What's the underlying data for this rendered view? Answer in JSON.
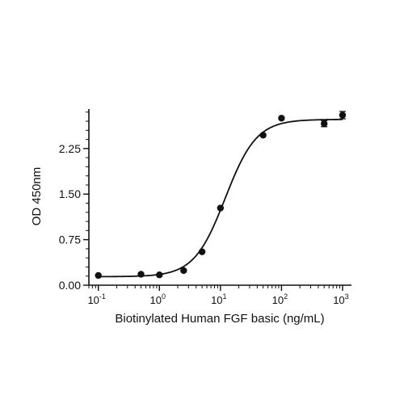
{
  "chart_data": {
    "type": "scatter",
    "title": "",
    "xlabel": "Biotinylated Human FGF basic (ng/mL)",
    "ylabel": "OD 450nm",
    "x_scale": "log10",
    "xlim": [
      0.07,
      1400
    ],
    "ylim": [
      0,
      2.9
    ],
    "y_ticks": [
      {
        "value": 0.0,
        "label": "0.00"
      },
      {
        "value": 0.75,
        "label": "0.75"
      },
      {
        "value": 1.5,
        "label": "1.50"
      },
      {
        "value": 2.25,
        "label": "2.25"
      }
    ],
    "x_ticks": [
      {
        "value": 0.1,
        "base": "10",
        "exp": "-1"
      },
      {
        "value": 1,
        "base": "10",
        "exp": "0"
      },
      {
        "value": 10,
        "base": "10",
        "exp": "1"
      },
      {
        "value": 100,
        "base": "10",
        "exp": "2"
      },
      {
        "value": 1000,
        "base": "10",
        "exp": "3"
      }
    ],
    "grid": false,
    "legend": "none",
    "series": [
      {
        "points": [
          {
            "x": 0.1,
            "y": 0.16
          },
          {
            "x": 0.5,
            "y": 0.18
          },
          {
            "x": 1,
            "y": 0.17
          },
          {
            "x": 2.5,
            "y": 0.24
          },
          {
            "x": 5,
            "y": 0.55
          },
          {
            "x": 10,
            "y": 1.27
          },
          {
            "x": 50,
            "y": 2.47
          },
          {
            "x": 100,
            "y": 2.75
          },
          {
            "x": 500,
            "y": 2.66,
            "err": 0.05
          },
          {
            "x": 1000,
            "y": 2.8,
            "err": 0.06
          }
        ]
      }
    ],
    "fit": {
      "model": "4PL",
      "bottom": 0.14,
      "top": 2.73,
      "ec50": 12,
      "hill": 1.7
    },
    "colors": {
      "marks": "#111111"
    }
  }
}
